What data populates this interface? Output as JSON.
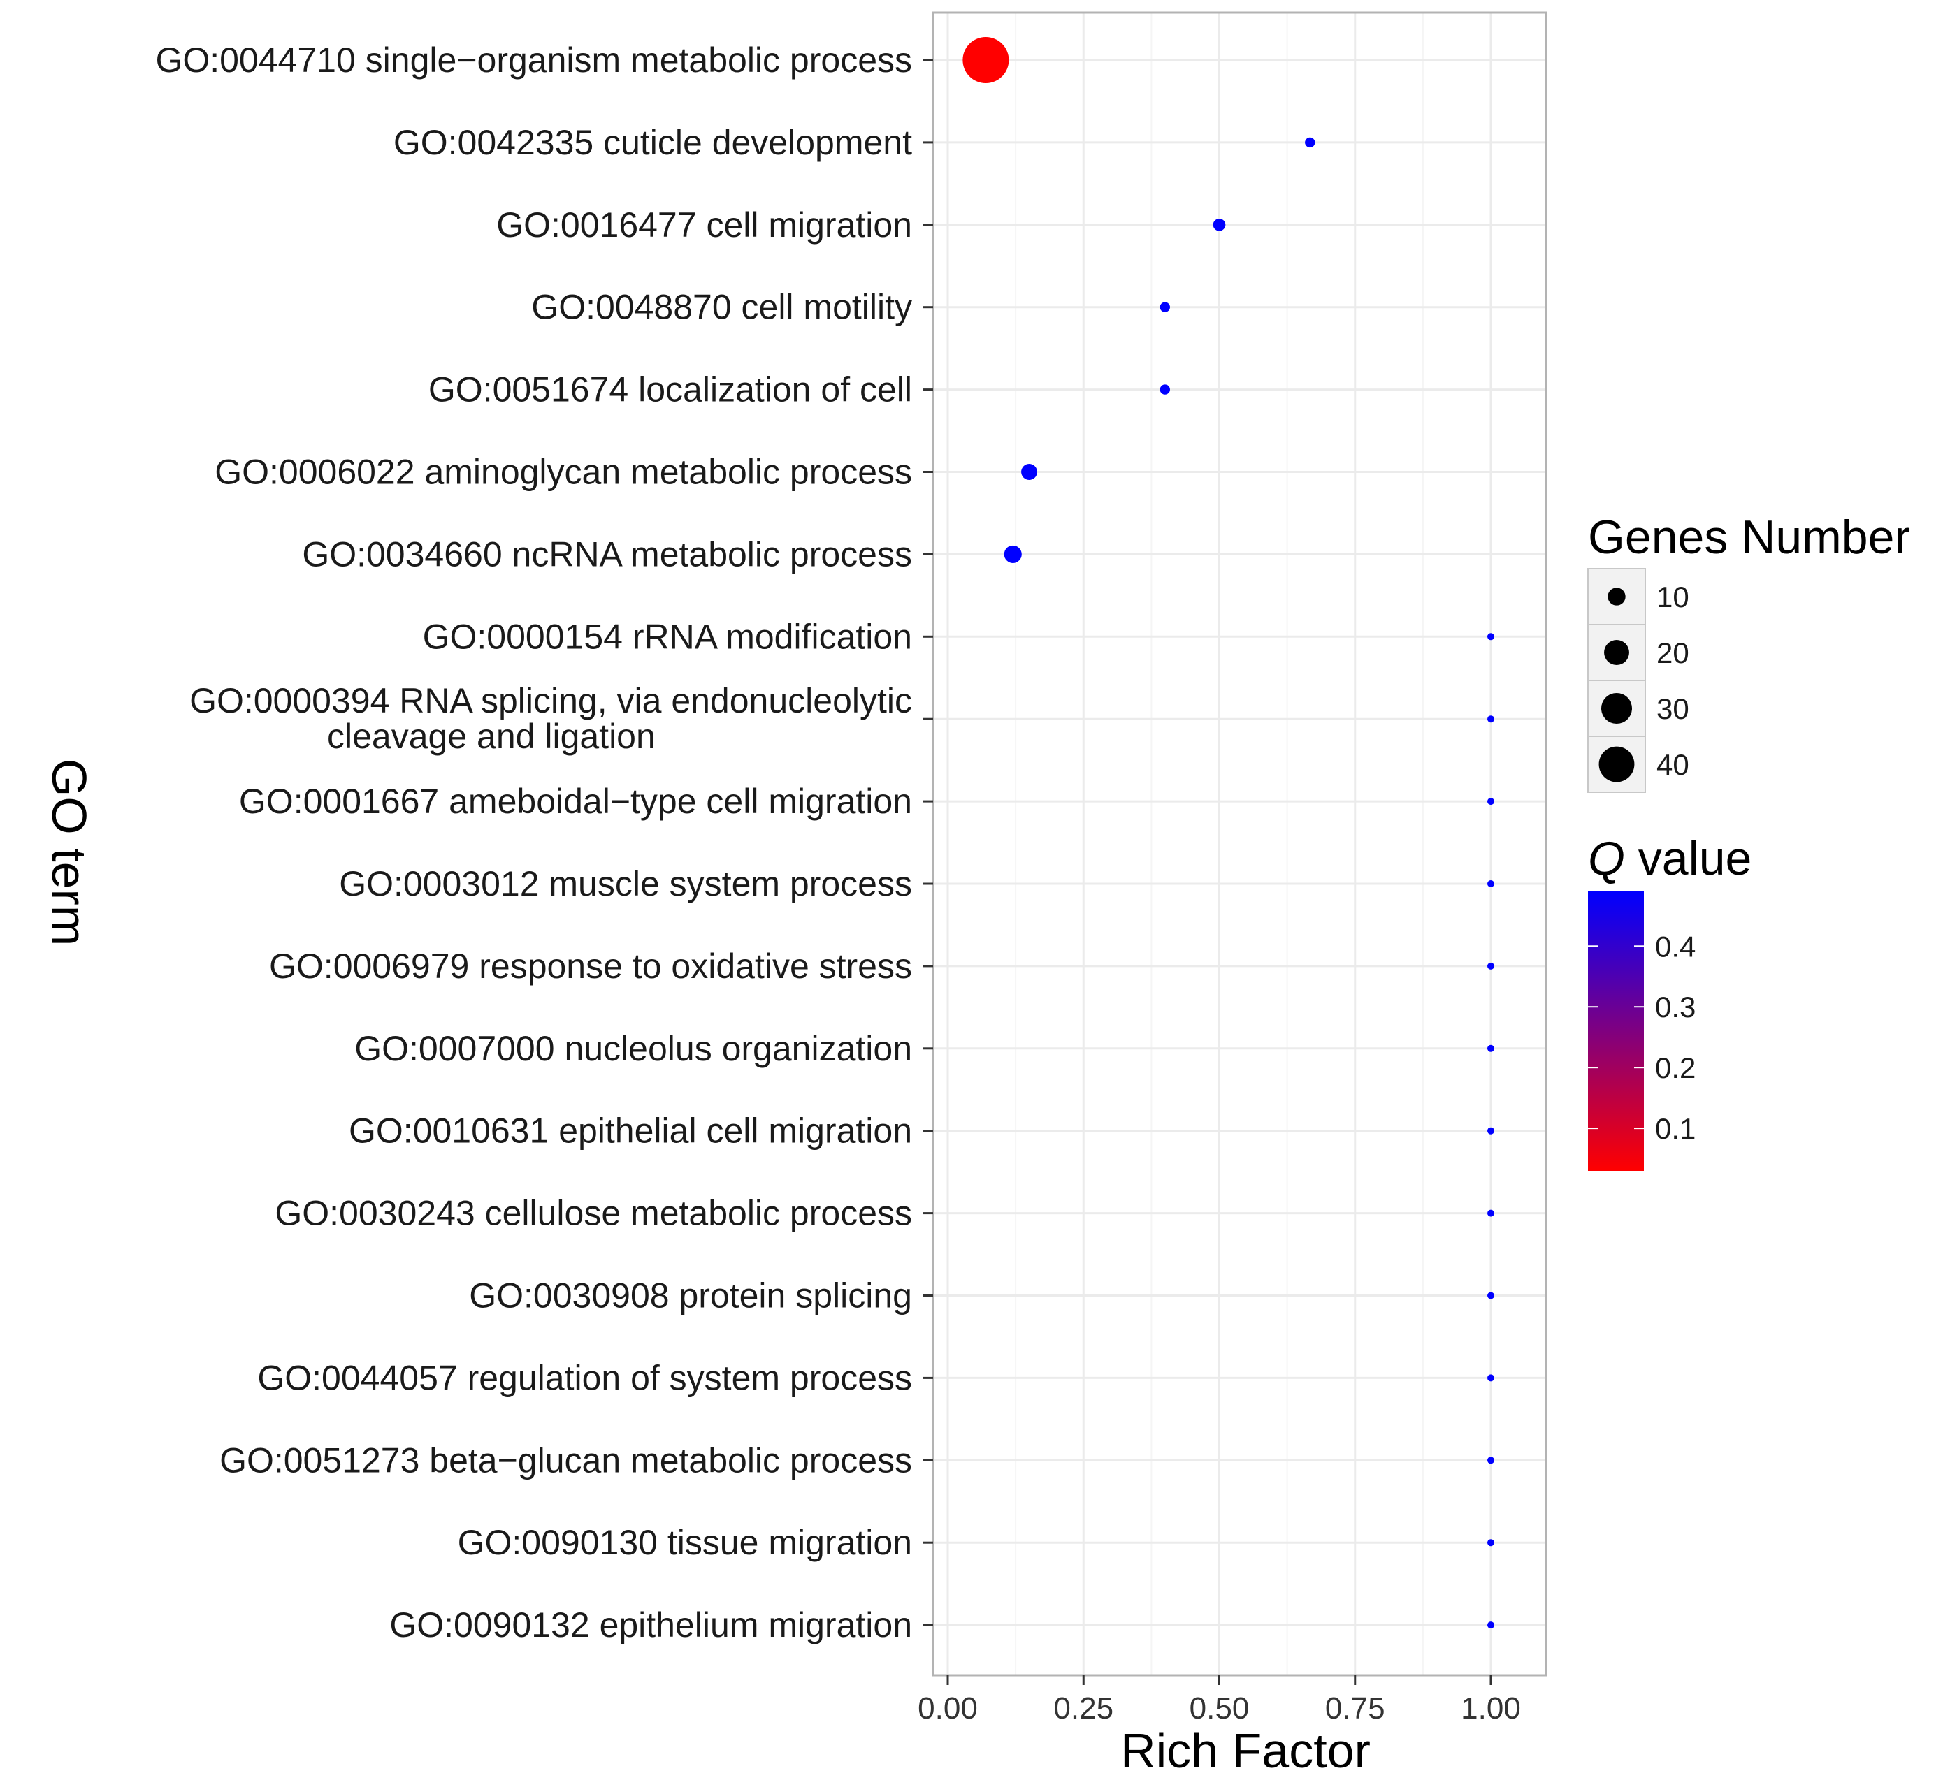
{
  "chart_data": {
    "type": "scatter",
    "title": "",
    "xlabel": "Rich Factor",
    "ylabel": "GO term",
    "xlim": [
      -0.03,
      1.1
    ],
    "xticks": [
      0,
      0.25,
      0.5,
      0.75,
      1
    ],
    "xtick_labels": [
      "0.00",
      "0.25",
      "0.50",
      "0.75",
      "1.00"
    ],
    "grid": true,
    "terms": [
      {
        "label": [
          "GO:0044710 single−organism metabolic process"
        ],
        "rich_factor": 0.07,
        "genes": 41,
        "q_value": 0.03
      },
      {
        "label": [
          "GO:0042335 cuticle development"
        ],
        "rich_factor": 0.667,
        "genes": 2,
        "q_value": 0.49
      },
      {
        "label": [
          "GO:0016477 cell migration"
        ],
        "rich_factor": 0.5,
        "genes": 3,
        "q_value": 0.49
      },
      {
        "label": [
          "GO:0048870 cell motility"
        ],
        "rich_factor": 0.4,
        "genes": 2,
        "q_value": 0.49
      },
      {
        "label": [
          "GO:0051674 localization of cell"
        ],
        "rich_factor": 0.4,
        "genes": 2,
        "q_value": 0.49
      },
      {
        "label": [
          "GO:0006022 aminoglycan metabolic process"
        ],
        "rich_factor": 0.15,
        "genes": 5,
        "q_value": 0.49
      },
      {
        "label": [
          "GO:0034660 ncRNA metabolic process"
        ],
        "rich_factor": 0.12,
        "genes": 6,
        "q_value": 0.49
      },
      {
        "label": [
          "GO:0000154 rRNA modification"
        ],
        "rich_factor": 1.0,
        "genes": 1,
        "q_value": 0.49
      },
      {
        "label": [
          "GO:0000394 RNA splicing, via endonucleolytic",
          "cleavage and ligation"
        ],
        "rich_factor": 1.0,
        "genes": 1,
        "q_value": 0.49
      },
      {
        "label": [
          "GO:0001667 ameboidal−type cell migration"
        ],
        "rich_factor": 1.0,
        "genes": 1,
        "q_value": 0.49
      },
      {
        "label": [
          "GO:0003012 muscle system process"
        ],
        "rich_factor": 1.0,
        "genes": 1,
        "q_value": 0.49
      },
      {
        "label": [
          "GO:0006979 response to oxidative stress"
        ],
        "rich_factor": 1.0,
        "genes": 1,
        "q_value": 0.49
      },
      {
        "label": [
          "GO:0007000 nucleolus organization"
        ],
        "rich_factor": 1.0,
        "genes": 1,
        "q_value": 0.49
      },
      {
        "label": [
          "GO:0010631 epithelial cell migration"
        ],
        "rich_factor": 1.0,
        "genes": 1,
        "q_value": 0.49
      },
      {
        "label": [
          "GO:0030243 cellulose metabolic process"
        ],
        "rich_factor": 1.0,
        "genes": 1,
        "q_value": 0.49
      },
      {
        "label": [
          "GO:0030908 protein splicing"
        ],
        "rich_factor": 1.0,
        "genes": 1,
        "q_value": 0.49
      },
      {
        "label": [
          "GO:0044057 regulation of system process"
        ],
        "rich_factor": 1.0,
        "genes": 1,
        "q_value": 0.49
      },
      {
        "label": [
          "GO:0051273 beta−glucan metabolic process"
        ],
        "rich_factor": 1.0,
        "genes": 1,
        "q_value": 0.49
      },
      {
        "label": [
          "GO:0090130 tissue migration"
        ],
        "rich_factor": 1.0,
        "genes": 1,
        "q_value": 0.49
      },
      {
        "label": [
          "GO:0090132 epithelium migration"
        ],
        "rich_factor": 1.0,
        "genes": 1,
        "q_value": 0.49
      }
    ],
    "size_legend": {
      "title": "Genes Number",
      "values": [
        10,
        20,
        30,
        40
      ],
      "labels": [
        "10",
        "20",
        "30",
        "40"
      ]
    },
    "color_legend": {
      "title_italic": "Q",
      "title_rest": " value",
      "range": [
        0.03,
        0.49
      ],
      "low_color": "#ff0000",
      "high_color": "#0000ff",
      "ticks": [
        0.1,
        0.2,
        0.3,
        0.4
      ],
      "tick_labels": [
        "0.1",
        "0.2",
        "0.3",
        "0.4"
      ]
    },
    "colors": {
      "panel_border": "#b3b3b3",
      "grid_major": "#ebebeb",
      "grid_minor": "#f5f5f5",
      "legend_key_bg": "#f2f2f2",
      "legend_key_border": "#c8c8c8"
    }
  }
}
